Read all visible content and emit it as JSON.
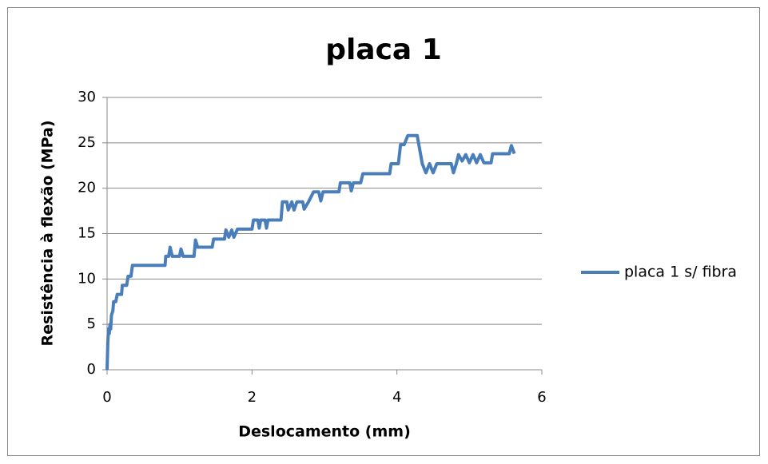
{
  "chart_data": {
    "type": "line",
    "title": "placa 1",
    "xlabel": "Deslocamento (mm)",
    "ylabel": "Resistência à flexão (MPa)",
    "x": [
      0,
      0.01,
      0.02,
      0.03,
      0.04,
      0.05,
      0.06,
      0.08,
      0.09,
      0.12,
      0.14,
      0.2,
      0.21,
      0.27,
      0.29,
      0.33,
      0.35,
      0.8,
      0.81,
      0.85,
      0.87,
      0.9,
      1.0,
      1.02,
      1.05,
      1.2,
      1.22,
      1.25,
      1.45,
      1.47,
      1.62,
      1.64,
      1.68,
      1.72,
      1.75,
      1.8,
      2.0,
      2.02,
      2.08,
      2.1,
      2.12,
      2.18,
      2.2,
      2.22,
      2.4,
      2.42,
      2.48,
      2.5,
      2.55,
      2.58,
      2.62,
      2.7,
      2.72,
      2.78,
      2.85,
      2.92,
      2.95,
      2.98,
      3.2,
      3.22,
      3.35,
      3.37,
      3.4,
      3.5,
      3.53,
      3.9,
      3.92,
      4.02,
      4.05,
      4.1,
      4.15,
      4.28,
      4.35,
      4.4,
      4.45,
      4.5,
      4.55,
      4.75,
      4.78,
      4.82,
      4.85,
      4.9,
      4.95,
      5.0,
      5.05,
      5.1,
      5.15,
      5.2,
      5.3,
      5.32,
      5.55,
      5.58,
      5.62
    ],
    "series": [
      {
        "name": "placa 1 s/ fibra",
        "color": "#4a7ebb",
        "values": [
          0,
          3,
          4.5,
          4,
          5,
          4.5,
          6,
          6.5,
          7.5,
          7.5,
          8.3,
          8.3,
          9.3,
          9.3,
          10.3,
          10.3,
          11.5,
          11.5,
          12.5,
          12.5,
          13.5,
          12.5,
          12.5,
          13.3,
          12.5,
          12.5,
          14.3,
          13.5,
          13.5,
          14.4,
          14.4,
          15.4,
          14.6,
          15.4,
          14.6,
          15.5,
          15.5,
          16.5,
          16.5,
          15.6,
          16.5,
          16.5,
          15.6,
          16.5,
          16.5,
          18.5,
          18.5,
          17.6,
          18.5,
          17.6,
          18.5,
          18.5,
          17.7,
          18.5,
          19.6,
          19.6,
          18.6,
          19.6,
          19.6,
          20.6,
          20.6,
          19.7,
          20.6,
          20.6,
          21.6,
          21.6,
          22.7,
          22.7,
          24.8,
          24.8,
          25.8,
          25.8,
          22.7,
          21.7,
          22.7,
          21.7,
          22.7,
          22.7,
          21.7,
          22.7,
          23.7,
          23.0,
          23.7,
          22.8,
          23.7,
          22.8,
          23.7,
          22.8,
          22.8,
          23.8,
          23.8,
          24.7,
          23.8
        ]
      }
    ],
    "xlim": [
      0,
      6
    ],
    "xticks": [
      0,
      2,
      4,
      6
    ],
    "ylim": [
      0,
      30
    ],
    "yticks": [
      0,
      5,
      10,
      15,
      20,
      25,
      30
    ],
    "grid": true,
    "legend": "right"
  }
}
